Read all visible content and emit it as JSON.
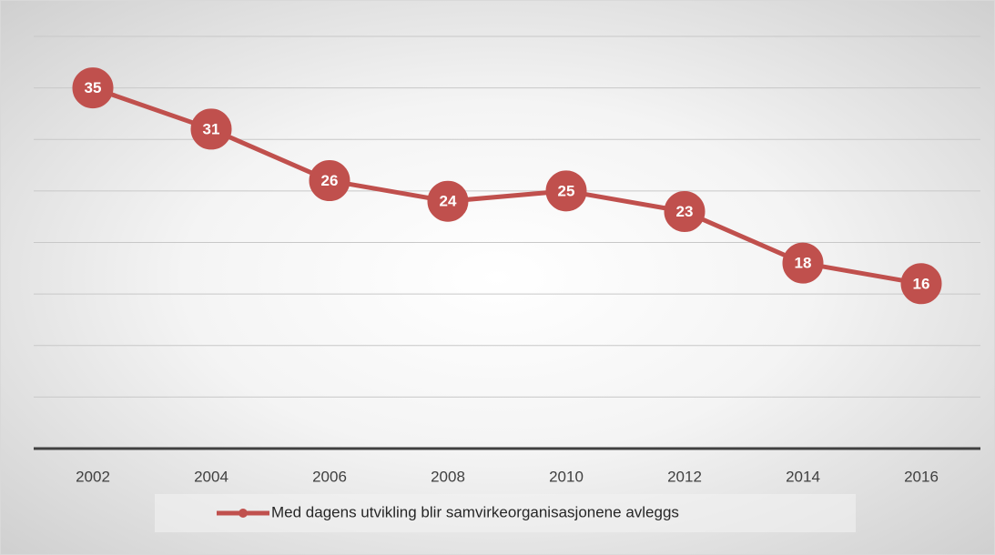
{
  "chart_data": {
    "type": "line",
    "categories": [
      "2002",
      "2004",
      "2006",
      "2008",
      "2010",
      "2012",
      "2014",
      "2016"
    ],
    "series": [
      {
        "name": "Med dagens utvikling blir  samvirkeorganisasjonene avleggs",
        "color": "#c0504d",
        "values": [
          35,
          31,
          26,
          24,
          25,
          23,
          18,
          16
        ]
      }
    ],
    "ylim": [
      0,
      40
    ],
    "yticks": [
      0,
      5,
      10,
      15,
      20,
      25,
      30,
      35,
      40
    ],
    "grid": true,
    "legend": "bottom"
  }
}
